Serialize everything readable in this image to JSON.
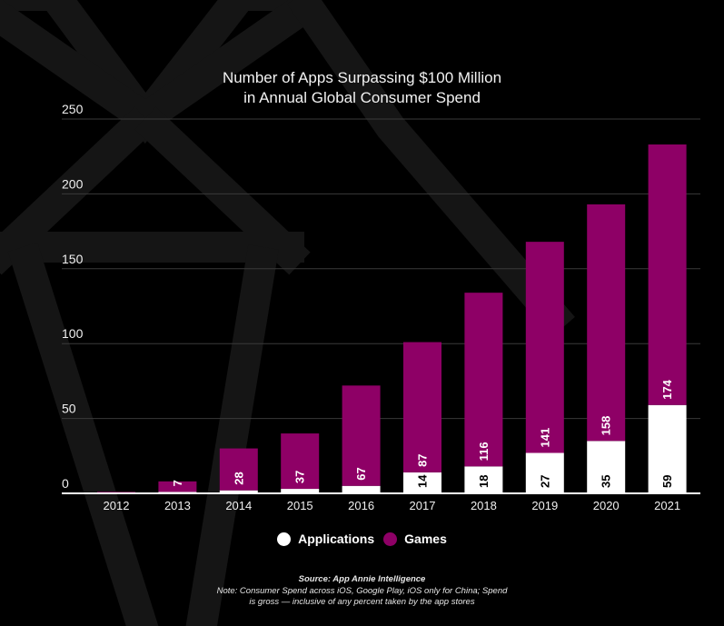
{
  "colors": {
    "background": "#000000",
    "pattern": "#151515",
    "applications": "#ffffff",
    "games": "#8e0066",
    "grid": "#3a3a3a",
    "axis": "#ffffff",
    "text": "#f0f0f0"
  },
  "chart_data": {
    "type": "bar",
    "stacked": true,
    "title": "Number of Apps Surpassing $100 Million in Annual Global Consumer Spend",
    "title_lines": [
      "Number of Apps Surpassing $100 Million",
      "in Annual Global Consumer Spend"
    ],
    "xlabel": "",
    "ylabel": "",
    "categories": [
      "2012",
      "2013",
      "2014",
      "2015",
      "2016",
      "2017",
      "2018",
      "2019",
      "2020",
      "2021"
    ],
    "series": [
      {
        "name": "Applications",
        "color": "#ffffff",
        "values": [
          0,
          1,
          2,
          3,
          5,
          14,
          18,
          27,
          35,
          59
        ],
        "labels": [
          null,
          null,
          null,
          null,
          null,
          "14",
          "18",
          "27",
          "35",
          "59"
        ]
      },
      {
        "name": "Games",
        "color": "#8e0066",
        "values": [
          1,
          7,
          28,
          37,
          67,
          87,
          116,
          141,
          158,
          174
        ],
        "labels": [
          null,
          "7",
          "28",
          "37",
          "67",
          "87",
          "116",
          "141",
          "158",
          "174"
        ]
      }
    ],
    "ylim": [
      0,
      250
    ],
    "yticks": [
      0,
      50,
      100,
      150,
      200,
      250
    ],
    "grid": true,
    "legend": {
      "position": "bottom-center",
      "entries": [
        "Applications",
        "Games"
      ]
    },
    "source": "Source: App Annie Intelligence",
    "note_lines": [
      "Note: Consumer Spend across iOS, Google Play, iOS only for China; Spend",
      "is gross — inclusive of any percent taken by the app stores"
    ]
  }
}
